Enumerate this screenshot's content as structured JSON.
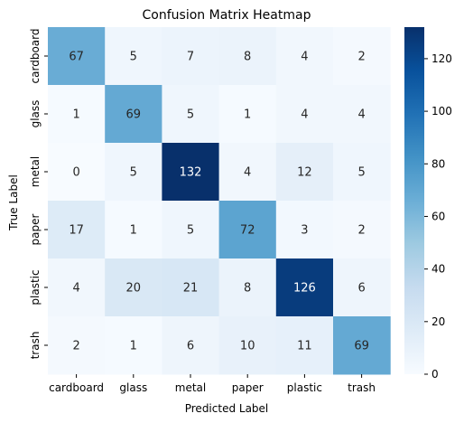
{
  "chart_data": {
    "type": "heatmap",
    "title": "Confusion Matrix Heatmap",
    "xlabel": "Predicted Label",
    "ylabel": "True Label",
    "x_categories": [
      "cardboard",
      "glass",
      "metal",
      "paper",
      "plastic",
      "trash"
    ],
    "y_categories": [
      "cardboard",
      "glass",
      "metal",
      "paper",
      "plastic",
      "trash"
    ],
    "values": [
      [
        67,
        5,
        7,
        8,
        4,
        2
      ],
      [
        1,
        69,
        5,
        1,
        4,
        4
      ],
      [
        0,
        5,
        132,
        4,
        12,
        5
      ],
      [
        17,
        1,
        5,
        72,
        3,
        2
      ],
      [
        4,
        20,
        21,
        8,
        126,
        6
      ],
      [
        2,
        1,
        6,
        10,
        11,
        69
      ]
    ],
    "colormap": "Blues",
    "colormap_stops": [
      "#f7fbff",
      "#deebf7",
      "#c6dbef",
      "#9ecae1",
      "#6baed6",
      "#4292c6",
      "#2171b5",
      "#08519c",
      "#08306b"
    ],
    "vmin": 0,
    "vmax": 132,
    "colorbar_ticks": [
      0,
      20,
      40,
      60,
      80,
      100,
      120
    ],
    "annotation_dark_color": "#262626",
    "annotation_light_color": "#ffffff"
  }
}
